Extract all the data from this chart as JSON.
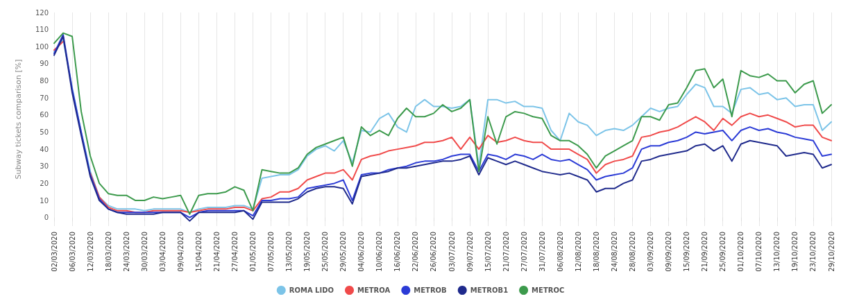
{
  "chart_data": {
    "type": "line",
    "ylabel": "Subway tickets comparison [%]",
    "categories": [
      "02/03/2020",
      null,
      "06/03/2020",
      null,
      "12/03/2020",
      null,
      "18/03/2020",
      null,
      "24/03/2020",
      null,
      "30/03/2020",
      null,
      "03/04/2020",
      null,
      "09/04/2020",
      null,
      "15/04/2020",
      null,
      "21/04/2020",
      null,
      "27/04/2020",
      null,
      "01/05/2020",
      null,
      "07/05/2020",
      null,
      "13/05/2020",
      null,
      "19/05/2020",
      null,
      "25/05/2020",
      null,
      "29/05/2020",
      null,
      "04/06/2020",
      null,
      "10/06/2020",
      null,
      "16/06/2020",
      null,
      "22/06/2020",
      null,
      "26/06/2020",
      null,
      "03/07/2020",
      null,
      "09/07/2020",
      null,
      "15/07/2020",
      null,
      "21/07/2020",
      null,
      "27/07/2020",
      null,
      "31/07/2020",
      null,
      "06/08/2020",
      null,
      "12/08/2020",
      null,
      "18/08/2020",
      null,
      "24/08/2020",
      null,
      "28/08/2020",
      null,
      "03/09/2020",
      null,
      "09/09/2020",
      null,
      "15/09/2020",
      null,
      "21/09/2020",
      null,
      "25/09/2020",
      null,
      "01/10/2020",
      null,
      "07/10/2020",
      null,
      "13/10/2020",
      null,
      "19/10/2020",
      null,
      "23/10/2020",
      null,
      "29/10/2020"
    ],
    "series": [
      {
        "name": "ROMA LIDO",
        "color": "#7cc4e8",
        "values": [
          97,
          104,
          76,
          50,
          27,
          12,
          7,
          5,
          5,
          5,
          4,
          5,
          5,
          5,
          5,
          3,
          5,
          6,
          6,
          6,
          7,
          7,
          5,
          23,
          24,
          25,
          25,
          28,
          36,
          40,
          42,
          39,
          45,
          32,
          51,
          50,
          58,
          61,
          53,
          50,
          65,
          69,
          65,
          65,
          64,
          65,
          69,
          30,
          69,
          69,
          67,
          68,
          65,
          65,
          64,
          51,
          45,
          61,
          56,
          54,
          48,
          51,
          52,
          51,
          54,
          59,
          64,
          62,
          64,
          65,
          72,
          78,
          76,
          65,
          65,
          61,
          75,
          76,
          72,
          73,
          69,
          70,
          65,
          66,
          66,
          51,
          56
        ]
      },
      {
        "name": "METROA",
        "color": "#f04a4a",
        "values": [
          98,
          103,
          null,
          null,
          26,
          12,
          6,
          4,
          4,
          3,
          3,
          4,
          4,
          4,
          4,
          3,
          4,
          5,
          5,
          5,
          6,
          6,
          4,
          11,
          12,
          15,
          15,
          17,
          22,
          24,
          26,
          26,
          28,
          22,
          34,
          36,
          37,
          39,
          40,
          41,
          42,
          44,
          44,
          45,
          47,
          40,
          47,
          40,
          48,
          44,
          45,
          47,
          45,
          44,
          44,
          40,
          40,
          40,
          37,
          34,
          26,
          31,
          33,
          34,
          36,
          47,
          48,
          50,
          51,
          53,
          56,
          59,
          56,
          51,
          58,
          54,
          59,
          61,
          59,
          60,
          58,
          56,
          53,
          54,
          54,
          47,
          45
        ]
      },
      {
        "name": "METROB",
        "color": "#2b3bd6",
        "values": [
          96,
          107,
          75,
          50,
          25,
          11,
          5,
          3,
          3,
          3,
          3,
          3,
          3,
          3,
          3,
          0,
          3,
          4,
          4,
          4,
          4,
          4,
          1,
          10,
          10,
          11,
          11,
          12,
          17,
          18,
          19,
          20,
          22,
          10,
          25,
          26,
          26,
          28,
          29,
          30,
          32,
          33,
          33,
          34,
          36,
          37,
          37,
          27,
          37,
          36,
          34,
          37,
          36,
          34,
          37,
          34,
          33,
          34,
          31,
          28,
          22,
          24,
          25,
          26,
          29,
          40,
          42,
          42,
          44,
          45,
          47,
          50,
          49,
          50,
          51,
          45,
          51,
          53,
          51,
          52,
          50,
          49,
          47,
          46,
          45,
          36,
          37
        ]
      },
      {
        "name": "METROB1",
        "color": "#1f2a8c",
        "values": [
          95,
          106,
          73,
          48,
          24,
          10,
          5,
          3,
          2,
          2,
          2,
          2,
          3,
          3,
          3,
          -2,
          3,
          3,
          3,
          3,
          3,
          4,
          -1,
          9,
          9,
          9,
          9,
          11,
          15,
          17,
          18,
          18,
          17,
          8,
          24,
          25,
          26,
          27,
          29,
          29,
          30,
          31,
          32,
          33,
          33,
          34,
          36,
          25,
          35,
          33,
          31,
          33,
          31,
          29,
          27,
          26,
          25,
          26,
          24,
          22,
          15,
          17,
          17,
          20,
          22,
          33,
          34,
          36,
          37,
          38,
          39,
          42,
          43,
          39,
          42,
          33,
          43,
          45,
          44,
          43,
          42,
          36,
          37,
          38,
          37,
          29,
          31
        ]
      },
      {
        "name": "METROC",
        "color": "#3c9a4c",
        "values": [
          102,
          108,
          106,
          62,
          36,
          20,
          14,
          13,
          13,
          10,
          10,
          12,
          11,
          12,
          13,
          2,
          13,
          14,
          14,
          15,
          18,
          16,
          4,
          28,
          27,
          26,
          26,
          29,
          37,
          41,
          43,
          45,
          47,
          30,
          53,
          48,
          51,
          48,
          58,
          64,
          59,
          59,
          61,
          66,
          62,
          64,
          69,
          27,
          59,
          43,
          59,
          62,
          61,
          59,
          58,
          48,
          45,
          45,
          42,
          37,
          29,
          36,
          39,
          42,
          45,
          59,
          59,
          57,
          66,
          67,
          76,
          86,
          87,
          76,
          81,
          59,
          86,
          83,
          82,
          84,
          80,
          80,
          73,
          78,
          80,
          61,
          66
        ]
      }
    ],
    "ylim": [
      -5,
      120
    ],
    "yticks": [
      0,
      10,
      20,
      30,
      40,
      50,
      60,
      70,
      80,
      90,
      100,
      110,
      120
    ],
    "grid": "x",
    "legend": "bottom",
    "marker": "none",
    "line_style": "solid"
  }
}
